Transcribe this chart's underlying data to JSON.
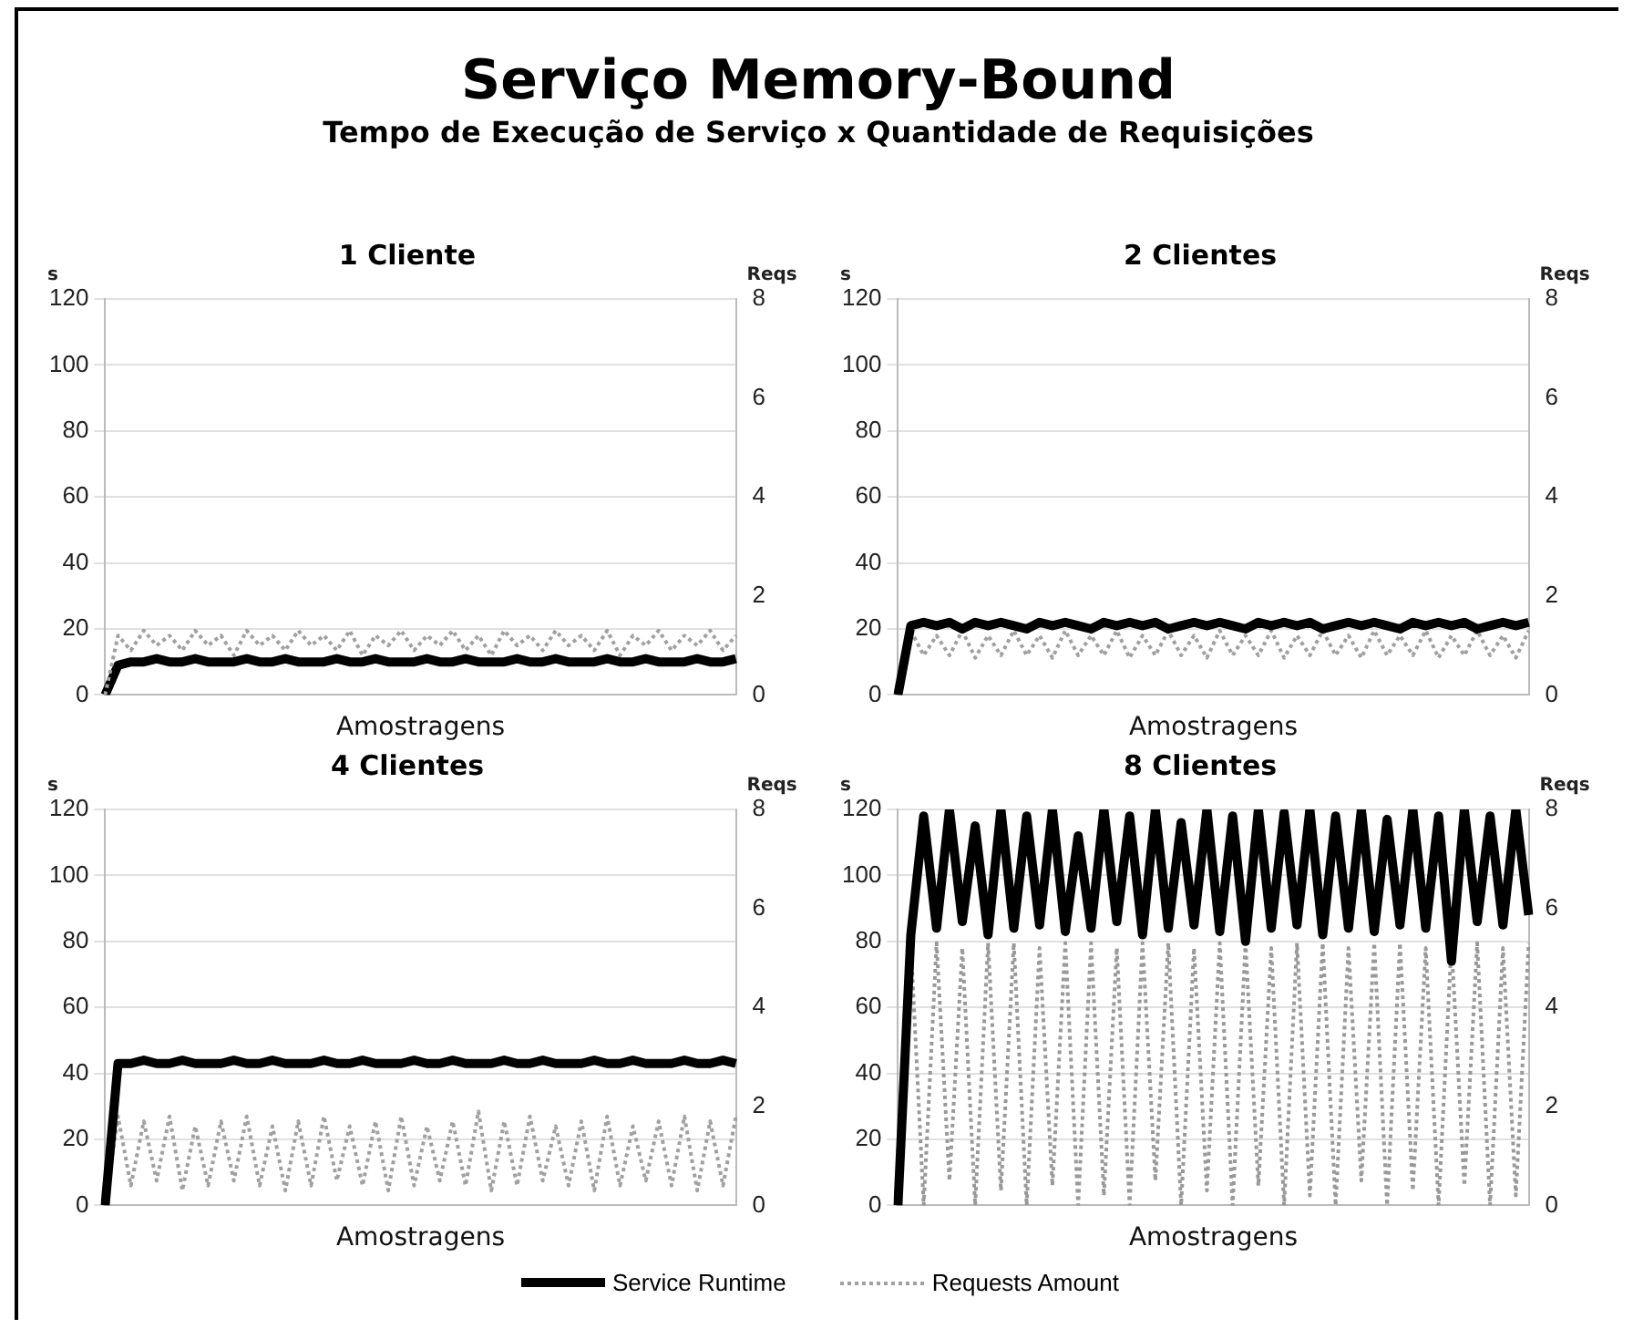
{
  "chart_data": [
    {
      "type": "line",
      "title": "1 Cliente",
      "legend": "bottom",
      "annotations": [
        "Serviço Memory-Bound",
        "Tempo de Execução de Serviço x Quantidade de Requisições"
      ],
      "xlabel": "Amostragens",
      "ylabel": "s",
      "y2label": "Reqs",
      "categories": [
        null,
        null,
        null,
        null,
        null,
        null,
        null,
        null,
        null,
        null,
        null,
        null,
        null,
        null,
        null,
        null,
        null,
        null,
        null,
        null,
        null,
        null,
        null,
        null,
        null,
        null,
        null,
        null,
        null,
        null,
        null,
        null,
        null,
        null,
        null,
        null,
        null,
        null,
        null,
        null,
        null,
        null,
        null,
        null,
        null,
        null,
        null,
        null,
        null,
        null
      ],
      "ylim": [
        0,
        120
      ],
      "yticks": [
        0,
        20,
        40,
        60,
        80,
        100,
        120
      ],
      "y2lim": [
        0,
        8
      ],
      "y2ticks": [
        0,
        2,
        4,
        6,
        8
      ],
      "grid": "y",
      "series": [
        {
          "name": "Service Runtime",
          "color": "#000000",
          "line_style": "solid",
          "values": [
            0,
            9,
            10,
            10,
            11,
            10,
            10,
            11,
            10,
            10,
            10,
            11,
            10,
            10,
            11,
            10,
            10,
            10,
            11,
            10,
            10,
            11,
            10,
            10,
            10,
            11,
            10,
            10,
            11,
            10,
            10,
            10,
            11,
            10,
            10,
            11,
            10,
            10,
            10,
            11,
            10,
            10,
            11,
            10,
            10,
            10,
            11,
            10,
            10,
            11
          ]
        },
        {
          "name": "Requests Amount",
          "color": "#a0a0a0",
          "line_style": "dotted",
          "axis": "y2",
          "values": [
            0,
            1.2,
            0.9,
            1.3,
            1,
            1.2,
            0.9,
            1.3,
            1,
            1.2,
            0.8,
            1.3,
            1,
            1.2,
            0.9,
            1.3,
            1,
            1.2,
            0.9,
            1.3,
            0.8,
            1.2,
            1,
            1.3,
            0.9,
            1.2,
            1,
            1.3,
            0.9,
            1.2,
            0.8,
            1.3,
            1,
            1.2,
            0.9,
            1.3,
            1,
            1.2,
            0.9,
            1.3,
            0.8,
            1.2,
            1,
            1.3,
            0.9,
            1.2,
            1,
            1.3,
            0.9,
            1.2
          ]
        }
      ]
    },
    {
      "type": "line",
      "title": "2 Clientes",
      "xlabel": "Amostragens",
      "ylabel": "s",
      "y2label": "Reqs",
      "categories": [
        null,
        null,
        null,
        null,
        null,
        null,
        null,
        null,
        null,
        null,
        null,
        null,
        null,
        null,
        null,
        null,
        null,
        null,
        null,
        null,
        null,
        null,
        null,
        null,
        null,
        null,
        null,
        null,
        null,
        null,
        null,
        null,
        null,
        null,
        null,
        null,
        null,
        null,
        null,
        null,
        null,
        null,
        null,
        null,
        null,
        null,
        null,
        null,
        null,
        null
      ],
      "ylim": [
        0,
        120
      ],
      "yticks": [
        0,
        20,
        40,
        60,
        80,
        100,
        120
      ],
      "y2lim": [
        0,
        8
      ],
      "y2ticks": [
        0,
        2,
        4,
        6,
        8
      ],
      "grid": "y",
      "series": [
        {
          "color": "#a0a0a0",
          "line_style": "dotted",
          "axis": "y2",
          "values": [
            0,
            1.3,
            0.8,
            1.2,
            0.8,
            1.3,
            0.75,
            1.2,
            0.8,
            1.3,
            0.8,
            1.2,
            0.75,
            1.3,
            0.8,
            1.2,
            0.8,
            1.3,
            0.75,
            1.2,
            0.8,
            1.3,
            0.8,
            1.2,
            0.75,
            1.3,
            0.8,
            1.2,
            0.8,
            1.3,
            0.75,
            1.2,
            0.8,
            1.3,
            0.8,
            1.2,
            0.75,
            1.3,
            0.8,
            1.2,
            0.8,
            1.3,
            0.75,
            1.2,
            0.8,
            1.3,
            0.8,
            1.2,
            0.75,
            1.3
          ]
        },
        {
          "color": "#000000",
          "line_style": "solid",
          "values": [
            0,
            21,
            22,
            21,
            22,
            20,
            22,
            21,
            22,
            21,
            20,
            22,
            21,
            22,
            21,
            20,
            22,
            21,
            22,
            21,
            22,
            20,
            21,
            22,
            21,
            22,
            21,
            20,
            22,
            21,
            22,
            21,
            22,
            20,
            21,
            22,
            21,
            22,
            21,
            20,
            22,
            21,
            22,
            21,
            22,
            20,
            21,
            22,
            21,
            22
          ]
        }
      ]
    },
    {
      "type": "line",
      "title": "4 Clientes",
      "xlabel": "Amostragens",
      "ylabel": "s",
      "y2label": "Reqs",
      "categories": [
        null,
        null,
        null,
        null,
        null,
        null,
        null,
        null,
        null,
        null,
        null,
        null,
        null,
        null,
        null,
        null,
        null,
        null,
        null,
        null,
        null,
        null,
        null,
        null,
        null,
        null,
        null,
        null,
        null,
        null,
        null,
        null,
        null,
        null,
        null,
        null,
        null,
        null,
        null,
        null,
        null,
        null,
        null,
        null,
        null,
        null,
        null,
        null,
        null,
        null
      ],
      "ylim": [
        0,
        120
      ],
      "yticks": [
        0,
        20,
        40,
        60,
        80,
        100,
        120
      ],
      "y2lim": [
        0,
        8
      ],
      "y2ticks": [
        0,
        2,
        4,
        6,
        8
      ],
      "grid": "y",
      "series": [
        {
          "color": "#a0a0a0",
          "line_style": "dotted",
          "axis": "y2",
          "values": [
            0,
            1.8,
            0.4,
            1.7,
            0.5,
            1.8,
            0.3,
            1.6,
            0.4,
            1.7,
            0.5,
            1.8,
            0.4,
            1.6,
            0.3,
            1.7,
            0.4,
            1.8,
            0.5,
            1.6,
            0.4,
            1.7,
            0.3,
            1.8,
            0.4,
            1.6,
            0.5,
            1.7,
            0.4,
            1.9,
            0.3,
            1.7,
            0.4,
            1.8,
            0.5,
            1.6,
            0.4,
            1.7,
            0.3,
            1.8,
            0.4,
            1.6,
            0.5,
            1.7,
            0.4,
            1.8,
            0.3,
            1.7,
            0.4,
            1.8
          ]
        },
        {
          "color": "#000000",
          "line_style": "solid",
          "values": [
            0,
            43,
            43,
            44,
            43,
            43,
            44,
            43,
            43,
            43,
            44,
            43,
            43,
            44,
            43,
            43,
            43,
            44,
            43,
            43,
            44,
            43,
            43,
            43,
            44,
            43,
            43,
            44,
            43,
            43,
            43,
            44,
            43,
            43,
            44,
            43,
            43,
            43,
            44,
            43,
            43,
            44,
            43,
            43,
            43,
            44,
            43,
            43,
            44,
            43
          ]
        }
      ]
    },
    {
      "type": "line",
      "title": "8 Clientes",
      "xlabel": "Amostragens",
      "ylabel": "s",
      "y2label": "Reqs",
      "categories": [
        null,
        null,
        null,
        null,
        null,
        null,
        null,
        null,
        null,
        null,
        null,
        null,
        null,
        null,
        null,
        null,
        null,
        null,
        null,
        null,
        null,
        null,
        null,
        null,
        null,
        null,
        null,
        null,
        null,
        null,
        null,
        null,
        null,
        null,
        null,
        null,
        null,
        null,
        null,
        null,
        null,
        null,
        null,
        null,
        null,
        null,
        null,
        null,
        null,
        null
      ],
      "ylim": [
        0,
        120
      ],
      "yticks": [
        0,
        20,
        40,
        60,
        80,
        100,
        120
      ],
      "y2lim": [
        0,
        8
      ],
      "y2ticks": [
        0,
        2,
        4,
        6,
        8
      ],
      "grid": "y",
      "series": [
        {
          "color": "#999999",
          "line_style": "dotted",
          "axis": "y2",
          "values": [
            0,
            5.3,
            0,
            5.3,
            0.5,
            5.2,
            0,
            5.3,
            0.3,
            5.3,
            0,
            5.2,
            0.4,
            5.3,
            0,
            5.3,
            0.2,
            5.2,
            0,
            5.3,
            0.5,
            5.3,
            0,
            5.2,
            0.3,
            5.3,
            0,
            5.3,
            0.4,
            5.2,
            0,
            5.3,
            0.2,
            5.3,
            0,
            5.2,
            0.5,
            5.3,
            0,
            5.3,
            0.3,
            5.2,
            0,
            5.3,
            0.4,
            5.3,
            0,
            5.2,
            0.2,
            5.3
          ]
        },
        {
          "color": "#000000",
          "line_style": "solid",
          "values": [
            0,
            82,
            118,
            84,
            120,
            86,
            115,
            82,
            120,
            84,
            118,
            85,
            120,
            83,
            112,
            84,
            120,
            86,
            118,
            82,
            120,
            84,
            116,
            85,
            120,
            83,
            118,
            80,
            120,
            84,
            119,
            85,
            120,
            82,
            118,
            84,
            120,
            83,
            117,
            85,
            120,
            84,
            118,
            74,
            120,
            86,
            118,
            85,
            120,
            88
          ]
        }
      ]
    }
  ]
}
